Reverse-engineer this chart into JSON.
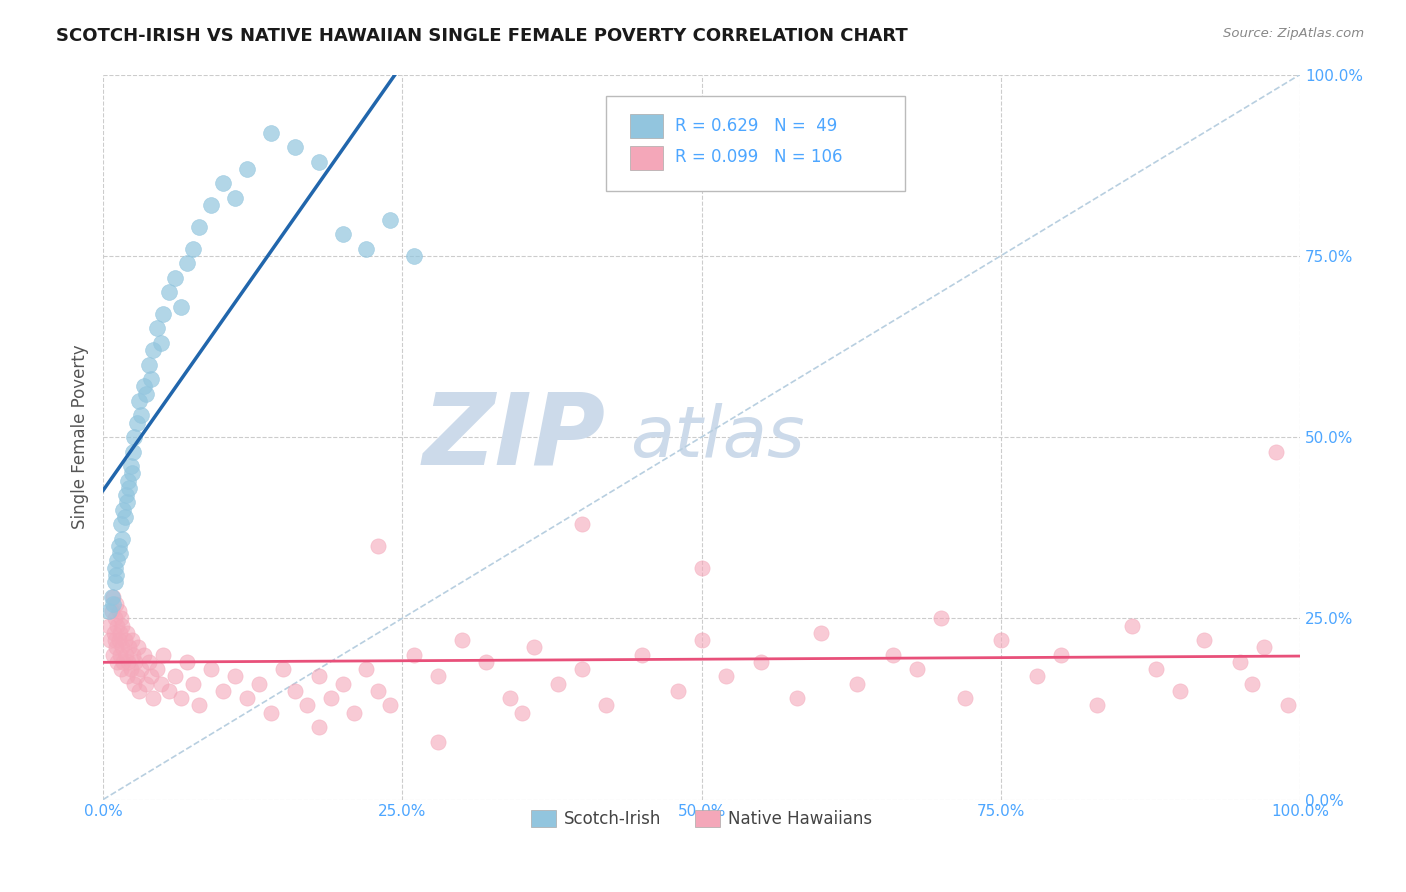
{
  "title": "SCOTCH-IRISH VS NATIVE HAWAIIAN SINGLE FEMALE POVERTY CORRELATION CHART",
  "source": "Source: ZipAtlas.com",
  "ylabel": "Single Female Poverty",
  "xticklabels": [
    "0.0%",
    "25.0%",
    "50.0%",
    "75.0%",
    "100.0%"
  ],
  "yticklabels": [
    "0.0%",
    "25.0%",
    "50.0%",
    "75.0%",
    "100.0%"
  ],
  "xlim": [
    0,
    1
  ],
  "ylim": [
    0,
    1
  ],
  "legend_entries": [
    "Scotch-Irish",
    "Native Hawaiians"
  ],
  "R1": 0.629,
  "N1": 49,
  "R2": 0.099,
  "N2": 106,
  "color_blue": "#92c5de",
  "color_pink": "#f4a7b9",
  "trend_blue": "#2166ac",
  "trend_pink": "#e8507a",
  "diag_color": "#b8cfe0",
  "watermark_color": "#ccdaea",
  "background_color": "#ffffff",
  "grid_color": "#cccccc",
  "tick_color": "#4da6ff",
  "title_color": "#1a1a1a",
  "scotch_irish_x": [
    0.005,
    0.007,
    0.008,
    0.01,
    0.01,
    0.011,
    0.012,
    0.013,
    0.014,
    0.015,
    0.016,
    0.017,
    0.018,
    0.019,
    0.02,
    0.021,
    0.022,
    0.023,
    0.024,
    0.025,
    0.026,
    0.028,
    0.03,
    0.032,
    0.034,
    0.036,
    0.038,
    0.04,
    0.042,
    0.045,
    0.048,
    0.05,
    0.055,
    0.06,
    0.065,
    0.07,
    0.075,
    0.08,
    0.09,
    0.1,
    0.11,
    0.12,
    0.14,
    0.16,
    0.18,
    0.2,
    0.22,
    0.24,
    0.26
  ],
  "scotch_irish_y": [
    0.26,
    0.28,
    0.27,
    0.3,
    0.32,
    0.31,
    0.33,
    0.35,
    0.34,
    0.38,
    0.36,
    0.4,
    0.39,
    0.42,
    0.41,
    0.44,
    0.43,
    0.46,
    0.45,
    0.48,
    0.5,
    0.52,
    0.55,
    0.53,
    0.57,
    0.56,
    0.6,
    0.58,
    0.62,
    0.65,
    0.63,
    0.67,
    0.7,
    0.72,
    0.68,
    0.74,
    0.76,
    0.79,
    0.82,
    0.85,
    0.83,
    0.87,
    0.92,
    0.9,
    0.88,
    0.78,
    0.76,
    0.8,
    0.75
  ],
  "native_hawaiian_x": [
    0.005,
    0.006,
    0.007,
    0.008,
    0.008,
    0.009,
    0.01,
    0.01,
    0.011,
    0.011,
    0.012,
    0.012,
    0.013,
    0.013,
    0.014,
    0.014,
    0.015,
    0.015,
    0.016,
    0.016,
    0.017,
    0.018,
    0.019,
    0.02,
    0.02,
    0.021,
    0.022,
    0.023,
    0.024,
    0.025,
    0.026,
    0.027,
    0.028,
    0.029,
    0.03,
    0.032,
    0.034,
    0.036,
    0.038,
    0.04,
    0.042,
    0.045,
    0.048,
    0.05,
    0.055,
    0.06,
    0.065,
    0.07,
    0.075,
    0.08,
    0.09,
    0.1,
    0.11,
    0.12,
    0.13,
    0.14,
    0.15,
    0.16,
    0.17,
    0.18,
    0.19,
    0.2,
    0.21,
    0.22,
    0.23,
    0.24,
    0.26,
    0.28,
    0.3,
    0.32,
    0.34,
    0.36,
    0.38,
    0.4,
    0.42,
    0.45,
    0.48,
    0.5,
    0.52,
    0.55,
    0.58,
    0.6,
    0.63,
    0.66,
    0.68,
    0.7,
    0.72,
    0.75,
    0.78,
    0.8,
    0.83,
    0.86,
    0.88,
    0.9,
    0.92,
    0.95,
    0.96,
    0.97,
    0.98,
    0.99,
    0.23,
    0.18,
    0.4,
    0.5,
    0.35,
    0.28
  ],
  "native_hawaiian_y": [
    0.24,
    0.22,
    0.26,
    0.2,
    0.28,
    0.23,
    0.25,
    0.22,
    0.27,
    0.21,
    0.24,
    0.19,
    0.22,
    0.26,
    0.2,
    0.23,
    0.18,
    0.25,
    0.21,
    0.24,
    0.19,
    0.22,
    0.2,
    0.17,
    0.23,
    0.19,
    0.21,
    0.18,
    0.22,
    0.2,
    0.16,
    0.19,
    0.17,
    0.21,
    0.15,
    0.18,
    0.2,
    0.16,
    0.19,
    0.17,
    0.14,
    0.18,
    0.16,
    0.2,
    0.15,
    0.17,
    0.14,
    0.19,
    0.16,
    0.13,
    0.18,
    0.15,
    0.17,
    0.14,
    0.16,
    0.12,
    0.18,
    0.15,
    0.13,
    0.17,
    0.14,
    0.16,
    0.12,
    0.18,
    0.15,
    0.13,
    0.2,
    0.17,
    0.22,
    0.19,
    0.14,
    0.21,
    0.16,
    0.18,
    0.13,
    0.2,
    0.15,
    0.22,
    0.17,
    0.19,
    0.14,
    0.23,
    0.16,
    0.2,
    0.18,
    0.25,
    0.14,
    0.22,
    0.17,
    0.2,
    0.13,
    0.24,
    0.18,
    0.15,
    0.22,
    0.19,
    0.16,
    0.21,
    0.48,
    0.13,
    0.35,
    0.1,
    0.38,
    0.32,
    0.12,
    0.08
  ]
}
